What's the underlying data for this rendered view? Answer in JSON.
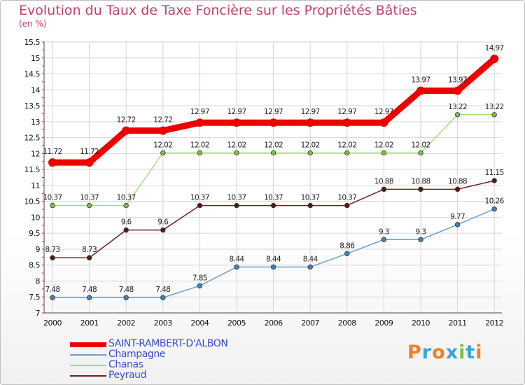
{
  "header": {
    "title": "Evolution du Taux de Taxe Foncière sur les Propriétés Bâties",
    "unit": "(en %)"
  },
  "logo": {
    "text": "Proxiti",
    "colors": [
      "#e8832a",
      "#3aa3d8",
      "#e8832a",
      "#3aa3d8",
      "#7fbf3f",
      "#3aa3d8",
      "#e8832a"
    ]
  },
  "chart_data": {
    "type": "line",
    "title": "Evolution du Taux de Taxe Foncière sur les Propriétés Bâties",
    "ylabel": "(en %)",
    "xlabel": "",
    "ylim": [
      7,
      15.5
    ],
    "yticks": [
      "7",
      "7.5",
      "8",
      "8.5",
      "9",
      "9.5",
      "10",
      "10.5",
      "11",
      "11.5",
      "12",
      "12.5",
      "13",
      "13.5",
      "14",
      "14.5",
      "15",
      "15.5"
    ],
    "categories": [
      "2000",
      "2001",
      "2002",
      "2003",
      "2004",
      "2005",
      "2006",
      "2007",
      "2008",
      "2009",
      "2010",
      "2011",
      "2012"
    ],
    "grid": true,
    "legend_position": "bottom-left",
    "series": [
      {
        "name": "Peyraud",
        "color": "#6b2222",
        "marker": "#5a1616",
        "values": [
          8.73,
          8.73,
          9.6,
          9.6,
          10.37,
          10.37,
          10.37,
          10.37,
          10.37,
          10.88,
          10.88,
          10.88,
          11.15
        ],
        "labels": [
          "8.73",
          "8.73",
          "9.6",
          "9.6",
          "10.37",
          "10.37",
          "10.37",
          "10.37",
          "10.37",
          "10.88",
          "10.88",
          "10.88",
          "11.15"
        ]
      },
      {
        "name": "Champagne",
        "color": "#6aa0cc",
        "marker": "#3a84c0",
        "values": [
          7.48,
          7.48,
          7.48,
          7.48,
          7.85,
          8.44,
          8.44,
          8.44,
          8.86,
          9.3,
          9.3,
          9.77,
          10.26
        ],
        "labels": [
          "7.48",
          "7.48",
          "7.48",
          "7.48",
          "7.85",
          "8.44",
          "8.44",
          "8.44",
          "8.86",
          "9.3",
          "9.3",
          "9.77",
          "10.26"
        ]
      },
      {
        "name": "Chanas",
        "color": "#a6dd7c",
        "marker": "#7cc043",
        "values": [
          10.37,
          10.37,
          10.37,
          12.02,
          12.02,
          12.02,
          12.02,
          12.02,
          12.02,
          12.02,
          12.02,
          13.22,
          13.22
        ],
        "labels": [
          "10.37",
          "10.37",
          "10.37",
          "12.02",
          "12.02",
          "12.02",
          "12.02",
          "12.02",
          "12.02",
          "12.02",
          "12.02",
          "13.22",
          "13.22"
        ]
      },
      {
        "name": "SAINT-RAMBERT-D'ALBON",
        "color": "#ee0000",
        "marker": "#ee0000",
        "values": [
          11.72,
          11.72,
          12.72,
          12.72,
          12.97,
          12.97,
          12.97,
          12.97,
          12.97,
          12.97,
          13.97,
          13.97,
          14.97
        ],
        "labels": [
          "11.72",
          "11.72",
          "12.72",
          "12.72",
          "12.97",
          "12.97",
          "12.97",
          "12.97",
          "12.97",
          "12.97",
          "13.97",
          "13.97",
          "14.97"
        ]
      }
    ],
    "legend": [
      {
        "name": "SAINT-RAMBERT-D'ALBON",
        "color": "#ee0000"
      },
      {
        "name": "Champagne",
        "color": "#6aa0cc"
      },
      {
        "name": "Chanas",
        "color": "#a6dd7c"
      },
      {
        "name": "Peyraud",
        "color": "#6b2222"
      }
    ]
  }
}
